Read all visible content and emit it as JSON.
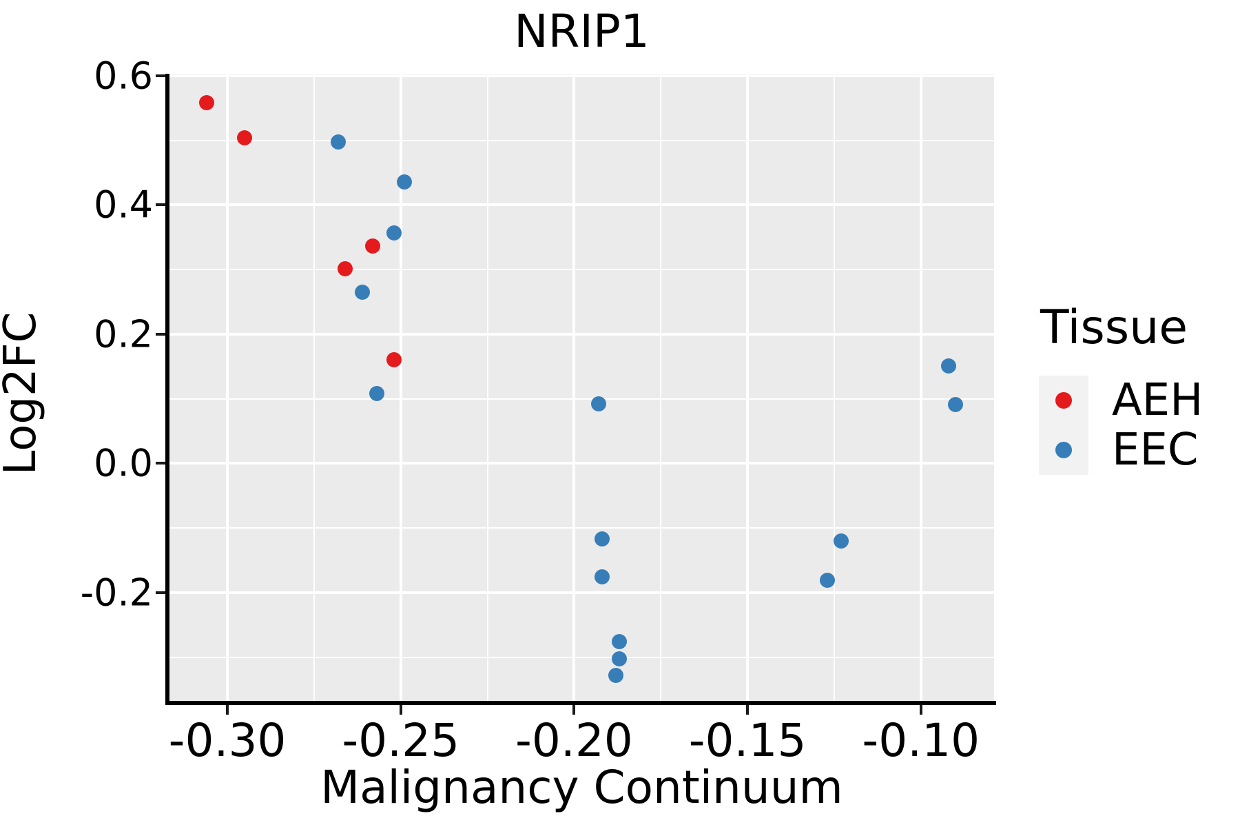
{
  "figure": {
    "title": "NRIP1",
    "x_axis_title": "Malignancy Continuum",
    "y_axis_title": "Log2FC"
  },
  "legend": {
    "title": "Tissue",
    "items": [
      {
        "label": "AEH",
        "color": "#e41a1c"
      },
      {
        "label": "EEC",
        "color": "#377eb8"
      }
    ]
  },
  "style": {
    "panel_bg": "#ebebeb",
    "grid_color": "#ffffff",
    "axis_line_color": "#000000",
    "legend_key_bg": "#f2f2f2",
    "aeh_color": "#e41a1c",
    "eec_color": "#377eb8"
  },
  "chart_data": {
    "type": "scatter",
    "title": "NRIP1",
    "xlabel": "Malignancy Continuum",
    "ylabel": "Log2FC",
    "xlim": [
      -0.3167,
      -0.0789
    ],
    "ylim": [
      -0.3707,
      0.6032
    ],
    "x_ticks": [
      -0.3,
      -0.25,
      -0.2,
      -0.15,
      -0.1
    ],
    "x_tick_labels": [
      "-0.30",
      "-0.25",
      "-0.20",
      "-0.15",
      "-0.10"
    ],
    "x_minor_ticks": [
      -0.275,
      -0.225,
      -0.175,
      -0.125
    ],
    "y_ticks": [
      0.6,
      0.4,
      0.2,
      0.0,
      -0.2
    ],
    "y_tick_labels": [
      "0.6",
      "0.4",
      "0.2",
      "0.0",
      "-0.2"
    ],
    "y_minor_ticks": [
      0.5,
      0.3,
      0.1,
      -0.1,
      -0.3
    ],
    "grid": true,
    "legend_position": "right",
    "series": [
      {
        "name": "AEH",
        "color": "#e41a1c",
        "points": [
          [
            -0.306,
            0.558
          ],
          [
            -0.295,
            0.504
          ],
          [
            -0.266,
            0.301
          ],
          [
            -0.258,
            0.337
          ],
          [
            -0.252,
            0.161
          ]
        ]
      },
      {
        "name": "EEC",
        "color": "#377eb8",
        "points": [
          [
            -0.268,
            0.498
          ],
          [
            -0.249,
            0.436
          ],
          [
            -0.252,
            0.357
          ],
          [
            -0.261,
            0.265
          ],
          [
            -0.257,
            0.108
          ],
          [
            -0.193,
            0.092
          ],
          [
            -0.192,
            -0.117
          ],
          [
            -0.192,
            -0.175
          ],
          [
            -0.187,
            -0.276
          ],
          [
            -0.187,
            -0.302
          ],
          [
            -0.188,
            -0.328
          ],
          [
            -0.123,
            -0.12
          ],
          [
            -0.127,
            -0.181
          ],
          [
            -0.092,
            0.151
          ],
          [
            -0.09,
            0.091
          ]
        ]
      }
    ]
  }
}
